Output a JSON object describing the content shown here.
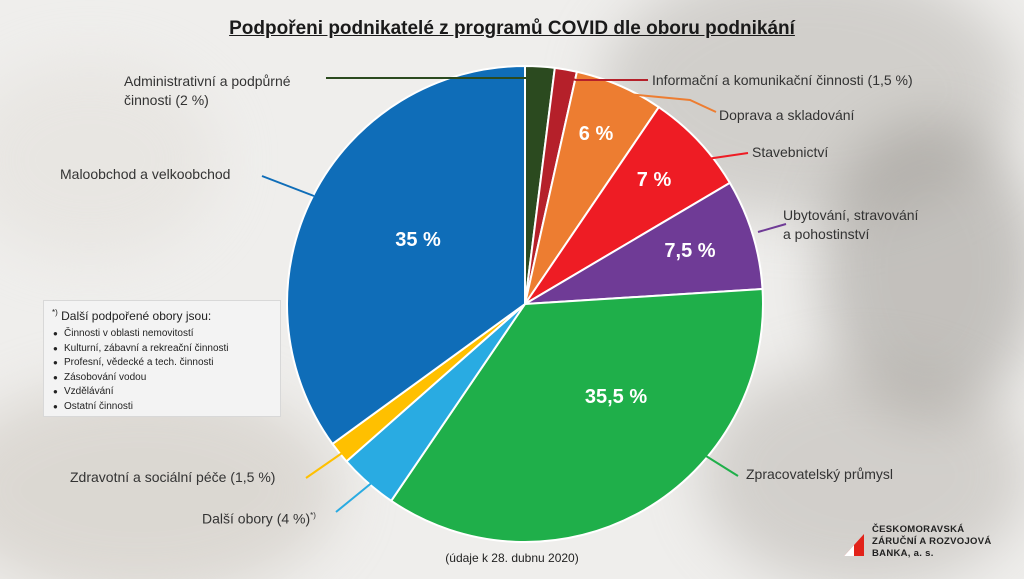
{
  "title": "Podpořeni podnikatelé z programů COVID dle oboru podnikání",
  "footnote": "(údaje k 28. dubnu 2020)",
  "legend_note": {
    "marker": "*)",
    "heading": "Další podpořené obory jsou:",
    "items": [
      "Činnosti v oblasti nemovitostí",
      "Kulturní, zábavní a rekreační činnosti",
      "Profesní, vědecké a tech. činnosti",
      "Zásobování vodou",
      "Vzdělávání",
      "Ostatní činnosti"
    ]
  },
  "logo": {
    "line1": "ČESKOMORAVSKÁ",
    "line2": "ZÁRUČNÍ A ROZVOJOVÁ",
    "line3": "BANKA, a. s.",
    "color": "#e2231a"
  },
  "chart_data": {
    "type": "pie",
    "title": "Podpořeni podnikatelé z programů COVID dle oboru podnikání",
    "slices": [
      {
        "label": "Administrativní a podpůrné činnosti (2 %)",
        "value": 2,
        "color": "#2b4a1f",
        "inside_label": ""
      },
      {
        "label": "Informační a komunikační činnosti (1,5 %)",
        "value": 1.5,
        "color": "#b5202a",
        "inside_label": ""
      },
      {
        "label": "Doprava a skladování",
        "value": 6,
        "color": "#ed7d31",
        "inside_label": "6 %"
      },
      {
        "label": "Stavebnictví",
        "value": 7,
        "color": "#ee1c24",
        "inside_label": "7 %"
      },
      {
        "label": "Ubytování, stravování a pohostinství",
        "value": 7.5,
        "color": "#6f3b96",
        "inside_label": "7,5 %"
      },
      {
        "label": "Zpracovatelský průmysl",
        "value": 35.5,
        "color": "#1faf4a",
        "inside_label": "35,5 %"
      },
      {
        "label": "Další obory (4 %)*)",
        "value": 4,
        "color": "#29abe2",
        "inside_label": ""
      },
      {
        "label": "Zdravotní a sociální péče (1,5 %)",
        "value": 1.5,
        "color": "#ffc000",
        "inside_label": ""
      },
      {
        "label": "Maloobchod a velkoobchod",
        "value": 35,
        "color": "#0f6db8",
        "inside_label": "35 %"
      }
    ]
  },
  "labels": {
    "admin_l1": "Administrativní a podpůrné",
    "admin_l2": "činnosti (2 %)",
    "info": "Informační a komunikační činnosti (1,5 %)",
    "doprava": "Doprava a skladování",
    "staveb": "Stavebnictví",
    "ubyt_l1": "Ubytování, stravování",
    "ubyt_l2": "a pohostinství",
    "zprac": "Zpracovatelský průmysl",
    "dalsi": "Další obory (4 %)",
    "dalsi_sup": "*)",
    "zdrav": "Zdravotní a sociální péče (1,5 %)",
    "malo": "Maloobchod a velkoobchod"
  }
}
